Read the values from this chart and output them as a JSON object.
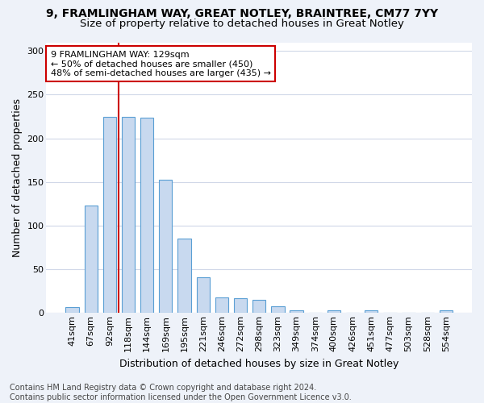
{
  "title1": "9, FRAMLINGHAM WAY, GREAT NOTLEY, BRAINTREE, CM77 7YY",
  "title2": "Size of property relative to detached houses in Great Notley",
  "xlabel": "Distribution of detached houses by size in Great Notley",
  "ylabel": "Number of detached properties",
  "categories": [
    "41sqm",
    "67sqm",
    "92sqm",
    "118sqm",
    "144sqm",
    "169sqm",
    "195sqm",
    "221sqm",
    "246sqm",
    "272sqm",
    "298sqm",
    "323sqm",
    "349sqm",
    "374sqm",
    "400sqm",
    "426sqm",
    "451sqm",
    "477sqm",
    "503sqm",
    "528sqm",
    "554sqm"
  ],
  "values": [
    7,
    123,
    225,
    225,
    224,
    153,
    85,
    41,
    18,
    17,
    15,
    8,
    3,
    0,
    3,
    0,
    3,
    0,
    0,
    0,
    3
  ],
  "bar_color": "#c8d9ef",
  "bar_edge_color": "#5a9fd4",
  "vline_x": 2.5,
  "vline_color": "#cc0000",
  "annotation_text": "9 FRAMLINGHAM WAY: 129sqm\n← 50% of detached houses are smaller (450)\n48% of semi-detached houses are larger (435) →",
  "annotation_box_color": "#ffffff",
  "annotation_box_edge": "#cc0000",
  "ylim": [
    0,
    310
  ],
  "yticks": [
    0,
    50,
    100,
    150,
    200,
    250,
    300
  ],
  "footnote": "Contains HM Land Registry data © Crown copyright and database right 2024.\nContains public sector information licensed under the Open Government Licence v3.0.",
  "bg_color": "#eef2f9",
  "plot_bg_color": "#ffffff",
  "grid_color": "#d0d8e8",
  "title1_fontsize": 10,
  "title2_fontsize": 9.5,
  "axis_label_fontsize": 9,
  "tick_fontsize": 8,
  "annotation_fontsize": 8,
  "footnote_fontsize": 7
}
